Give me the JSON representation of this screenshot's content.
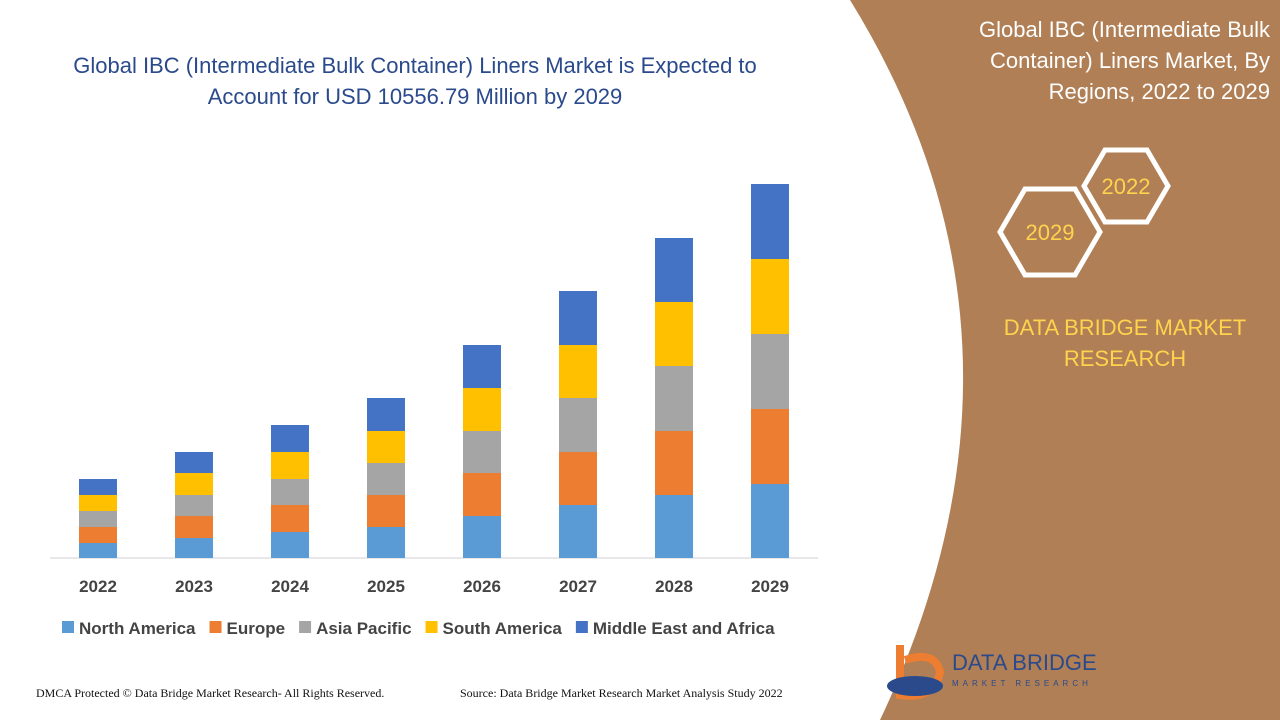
{
  "chart_data": {
    "type": "bar",
    "stacked": true,
    "title": "Global IBC (Intermediate Bulk Container) Liners Market is Expected to Account for USD 10556.79 Million by 2029",
    "categories": [
      "2022",
      "2023",
      "2024",
      "2025",
      "2026",
      "2027",
      "2028",
      "2029"
    ],
    "series": [
      {
        "name": "North America",
        "color": "#5b9bd5",
        "values": [
          15,
          20,
          26,
          31,
          42,
          53,
          63,
          74
        ]
      },
      {
        "name": "Europe",
        "color": "#ed7d31",
        "values": [
          16,
          22,
          27,
          32,
          43,
          53,
          64,
          75
        ]
      },
      {
        "name": "Asia Pacific",
        "color": "#a5a5a5",
        "values": [
          16,
          21,
          26,
          32,
          42,
          54,
          65,
          75
        ]
      },
      {
        "name": "South America",
        "color": "#ffc000",
        "values": [
          16,
          22,
          27,
          32,
          43,
          53,
          64,
          75
        ]
      },
      {
        "name": "Middle East and Africa",
        "color": "#4472c4",
        "values": [
          16,
          21,
          27,
          33,
          43,
          54,
          64,
          75
        ]
      }
    ]
  },
  "side_panel": {
    "title": "Global IBC (Intermediate Bulk Container) Liners Market, By Regions, 2022 to 2029",
    "year_start": "2022",
    "year_end": "2029",
    "brand": "DATA BRIDGE MARKET RESEARCH"
  },
  "logo": {
    "name": "DATA BRIDGE",
    "tagline": "MARKET RESEARCH"
  },
  "footer": {
    "left": "DMCA Protected © Data Bridge Market Research- All Rights Reserved.",
    "right": "Source: Data Bridge Market Research Market Analysis Study 2022"
  }
}
